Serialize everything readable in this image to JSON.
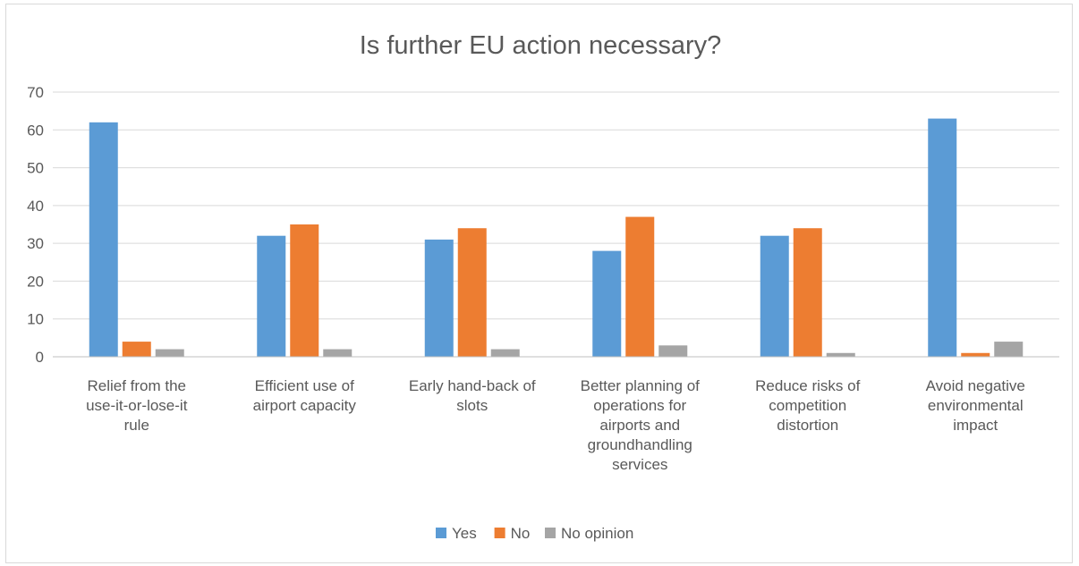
{
  "chart_data": {
    "type": "bar",
    "title": "Is further EU action necessary?",
    "xlabel": "",
    "ylabel": "",
    "ylim": [
      0,
      70
    ],
    "yticks": [
      0,
      10,
      20,
      30,
      40,
      50,
      60,
      70
    ],
    "grid": true,
    "legend_position": "bottom",
    "categories": [
      [
        "Relief from the",
        "use-it-or-lose-it",
        "rule"
      ],
      [
        "Efficient use of",
        "airport capacity"
      ],
      [
        "Early hand-back of",
        "slots"
      ],
      [
        "Better planning of",
        "operations for",
        "airports and",
        "groundhandling",
        "services"
      ],
      [
        "Reduce risks of",
        "competition",
        "distortion"
      ],
      [
        "Avoid negative",
        "environmental",
        "impact"
      ]
    ],
    "series": [
      {
        "name": "Yes",
        "color": "#5b9bd5",
        "values": [
          62,
          32,
          31,
          28,
          32,
          63
        ]
      },
      {
        "name": "No",
        "color": "#ed7d31",
        "values": [
          4,
          35,
          34,
          37,
          34,
          1
        ]
      },
      {
        "name": "No opinion",
        "color": "#a5a5a5",
        "values": [
          2,
          2,
          2,
          3,
          1,
          4
        ]
      }
    ]
  }
}
